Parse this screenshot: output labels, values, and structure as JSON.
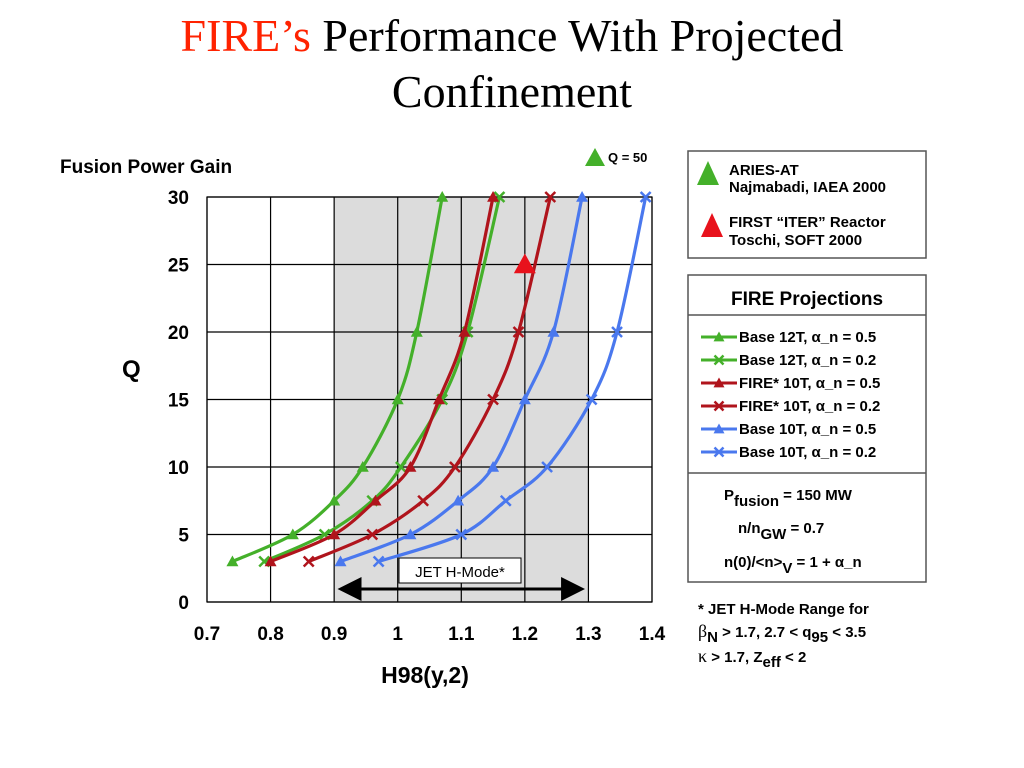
{
  "slide": {
    "title_accent": "FIRE’s",
    "title_rest_line1": " Performance With Projected",
    "title_line2": "Confinement"
  },
  "chart_data": {
    "type": "line",
    "title": "Fusion Power Gain",
    "xlabel": "H98(y,2)",
    "ylabel": "Q",
    "xlim": [
      0.7,
      1.4
    ],
    "ylim": [
      0,
      30
    ],
    "xticks": [
      "0.7",
      "0.8",
      "0.9",
      "1",
      "1.1",
      "1.2",
      "1.3",
      "1.4"
    ],
    "yticks": [
      "0",
      "5",
      "10",
      "15",
      "20",
      "25",
      "30"
    ],
    "grid": true,
    "shaded_region": {
      "x": [
        0.9,
        1.3
      ],
      "color": "#dcdcdc"
    },
    "jet_range_label": "JET H-Mode*",
    "jet_range_x": [
      0.91,
      1.29
    ],
    "q50_marker_label": "Q = 50",
    "legend_title": "FIRE Projections",
    "series": [
      {
        "name": "Base 12T, α_n = 0.5",
        "color": "#44b02a",
        "marker": "triangle",
        "x": [
          0.74,
          0.835,
          0.9,
          0.945,
          1.0,
          1.03,
          1.07
        ],
        "y": [
          3,
          5,
          7.5,
          10,
          15,
          20,
          30
        ]
      },
      {
        "name": "Base 12T, α_n = 0.2",
        "color": "#44b02a",
        "marker": "x",
        "x": [
          0.79,
          0.885,
          0.96,
          1.005,
          1.07,
          1.11,
          1.16
        ],
        "y": [
          3,
          5,
          7.5,
          10,
          15,
          20,
          30
        ]
      },
      {
        "name": "FIRE* 10T, α_n = 0.5",
        "color": "#b0141c",
        "marker": "triangle",
        "x": [
          0.8,
          0.9,
          0.965,
          1.02,
          1.065,
          1.105,
          1.15
        ],
        "y": [
          3,
          5,
          7.5,
          10,
          15,
          20,
          30
        ]
      },
      {
        "name": "FIRE* 10T, α_n = 0.2",
        "color": "#b0141c",
        "marker": "x",
        "x": [
          0.86,
          0.96,
          1.04,
          1.09,
          1.15,
          1.19,
          1.24
        ],
        "y": [
          3,
          5,
          7.5,
          10,
          15,
          20,
          30
        ]
      },
      {
        "name": "Base 10T, α_n = 0.5",
        "color": "#4a78ee",
        "marker": "triangle",
        "x": [
          0.91,
          1.02,
          1.095,
          1.15,
          1.2,
          1.245,
          1.29
        ],
        "y": [
          3,
          5,
          7.5,
          10,
          15,
          20,
          30
        ]
      },
      {
        "name": "Base 10T, α_n = 0.2",
        "color": "#4a78ee",
        "marker": "x",
        "x": [
          0.97,
          1.1,
          1.17,
          1.235,
          1.305,
          1.345,
          1.39
        ],
        "y": [
          3,
          5,
          7.5,
          10,
          15,
          20,
          30
        ]
      }
    ],
    "reference_points": [
      {
        "name": "ARIES-AT",
        "color": "#44b02a",
        "x": 1.2,
        "y": 25,
        "shown_on_plot": false
      },
      {
        "name": "FIRST “ITER” Reactor",
        "color": "#e8121c",
        "x": 1.2,
        "y": 25,
        "shown_on_plot": true
      }
    ]
  },
  "refbox": {
    "aries_name": "ARIES-AT",
    "aries_ref": "Najmabadi, IAEA 2000",
    "first_name": "FIRST “ITER” Reactor",
    "first_ref": "Toschi, SOFT 2000"
  },
  "params": {
    "p_base": "P",
    "p_sub": "fusion",
    "p_value": " = 150 MW",
    "n_base": "n/n",
    "n_sub": "GW",
    "n_value": " = 0.7",
    "prof_base": "n(0)/<n>",
    "prof_sub": "V",
    "prof_value": " = 1 + α_n"
  },
  "footnote": {
    "line1": "* JET H-Mode Range for",
    "beta_symbol": "β",
    "beta_sub": "N",
    "beta_text": " > 1.7,  2.7 < ",
    "q_base": "q",
    "q_sub": "95",
    "q_text": " < 3.5",
    "kappa_symbol": "κ",
    "kappa_text": " > 1.7, Z",
    "z_sub": "eff",
    "z_text": " < 2"
  }
}
